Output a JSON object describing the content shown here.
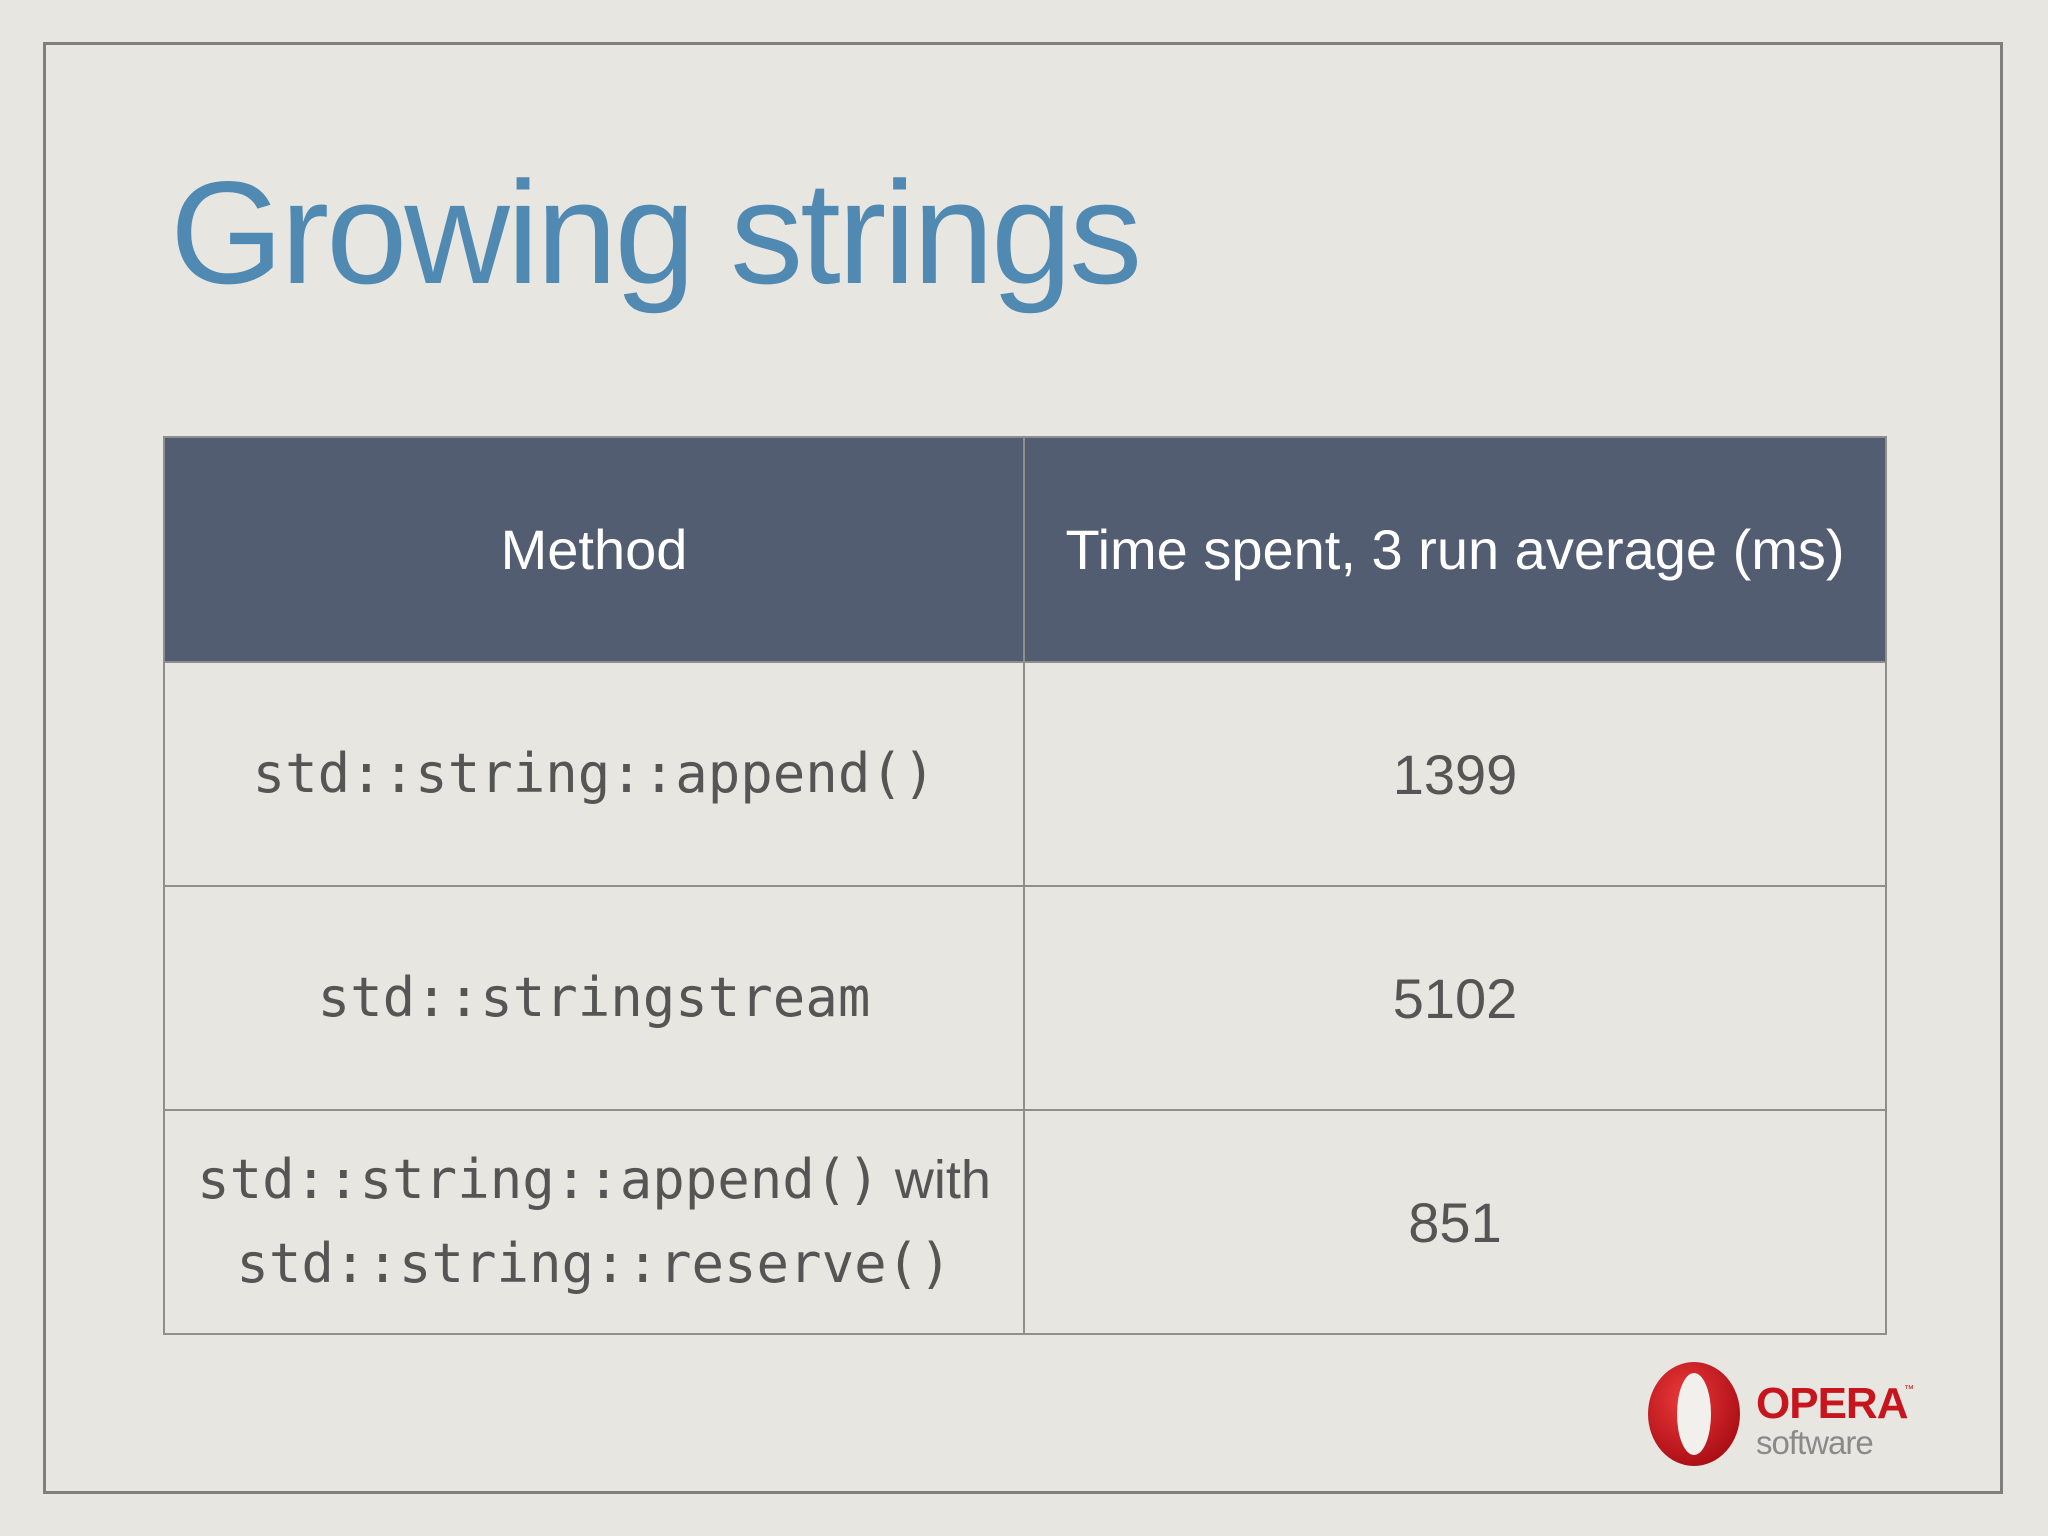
{
  "slide": {
    "title": "Growing strings"
  },
  "table": {
    "headers": [
      "Method",
      "Time spent, 3 run average (ms)"
    ],
    "rows": [
      {
        "method_code": "std::string::append()",
        "method_suffix": "",
        "method_line2": "",
        "time": "1399"
      },
      {
        "method_code": "std::stringstream",
        "method_suffix": "",
        "method_line2": "",
        "time": "5102"
      },
      {
        "method_code": "std::string::append()",
        "method_suffix": " with",
        "method_line2": "std::string::reserve()",
        "time": "851"
      }
    ]
  },
  "logo": {
    "name": "Opera Software logo",
    "word": "OPERA",
    "sub": "software",
    "tm": "™",
    "icon": "opera-o-icon",
    "colors": {
      "red": "#c7151d",
      "gray": "#8a8a8a"
    }
  },
  "colors": {
    "title": "#5089b1",
    "header_bg": "#525d71",
    "background": "#e8e6e1",
    "cell_text": "#555555"
  }
}
